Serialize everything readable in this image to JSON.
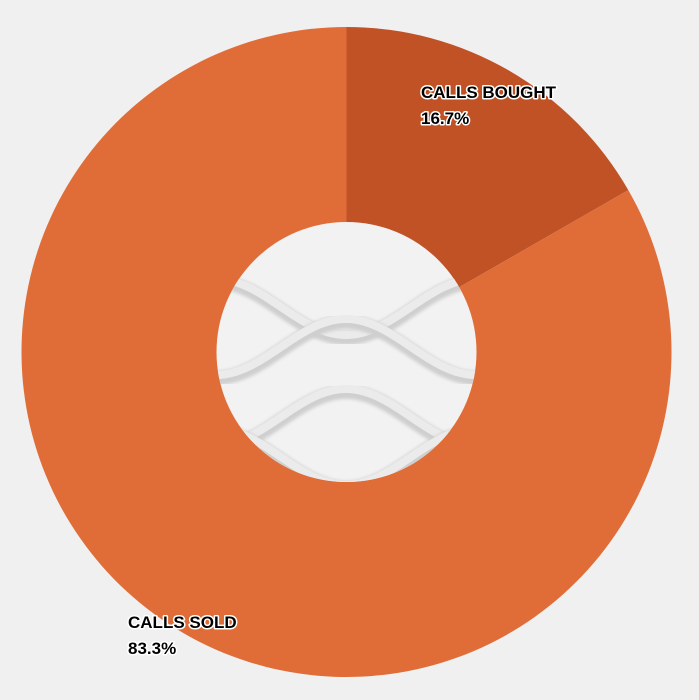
{
  "chart_data": {
    "type": "pie",
    "donut": true,
    "slices": [
      {
        "label": "CALLS BOUGHT",
        "value": 16.7,
        "value_label": "16.7%",
        "color": "#C05226"
      },
      {
        "label": "CALLS SOLD",
        "value": 83.3,
        "value_label": "83.3%",
        "color": "#E06D38"
      }
    ],
    "start_angle": "12 o'clock, clockwise",
    "legend": "none",
    "background": "#f0f0f0",
    "center_fill": "#f2f2f2"
  }
}
